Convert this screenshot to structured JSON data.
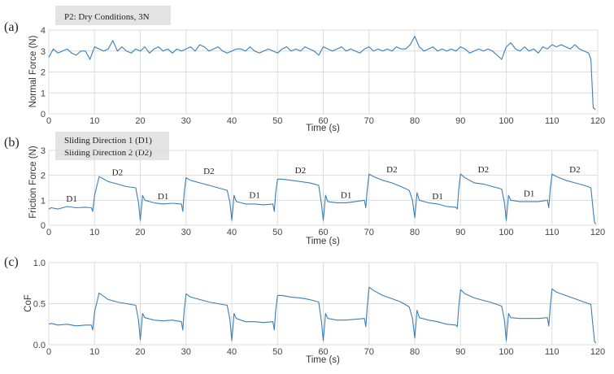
{
  "colors": {
    "line": "#3b7fb8",
    "grid": "#dcdcdc",
    "box": "#e3e3e3"
  },
  "chart_data": [
    {
      "type": "line",
      "panel": "(a)",
      "legend_box": [
        "P2: Dry Conditions, 3N"
      ],
      "xlabel": "Time (s)",
      "ylabel": "Normal Force (N)",
      "xlim": [
        0,
        120
      ],
      "ylim": [
        0,
        4
      ],
      "xticks": [
        "0",
        "10",
        "20",
        "30",
        "40",
        "50",
        "60",
        "70",
        "80",
        "90",
        "100",
        "110",
        "120"
      ],
      "yticks": [
        "0",
        "1",
        "2",
        "3",
        "4"
      ],
      "annotations": [],
      "series": [
        {
          "name": "Normal Force",
          "x": [
            0,
            1,
            2,
            3,
            4,
            5,
            6,
            7,
            8,
            9,
            10,
            11,
            12,
            13,
            14,
            15,
            16,
            17,
            18,
            19,
            20,
            21,
            22,
            23,
            24,
            25,
            26,
            27,
            28,
            29,
            30,
            31,
            32,
            33,
            34,
            35,
            36,
            37,
            38,
            39,
            40,
            41,
            42,
            43,
            44,
            45,
            46,
            47,
            48,
            49,
            50,
            51,
            52,
            53,
            54,
            55,
            56,
            57,
            58,
            59,
            60,
            61,
            62,
            63,
            64,
            65,
            66,
            67,
            68,
            69,
            70,
            71,
            72,
            73,
            74,
            75,
            76,
            77,
            78,
            79,
            80,
            81,
            82,
            83,
            84,
            85,
            86,
            87,
            88,
            89,
            90,
            91,
            92,
            93,
            94,
            95,
            96,
            97,
            98,
            99,
            100,
            101,
            102,
            103,
            104,
            105,
            106,
            107,
            108,
            109,
            110,
            111,
            112,
            113,
            114,
            115,
            116,
            117,
            118,
            118.5,
            119,
            119.5
          ],
          "y": [
            2.7,
            3.1,
            2.9,
            3.0,
            3.1,
            2.9,
            2.8,
            3.0,
            3.0,
            2.6,
            3.2,
            3.1,
            3.0,
            3.1,
            3.5,
            3.0,
            3.2,
            3.0,
            2.9,
            3.1,
            3.0,
            3.2,
            2.9,
            3.1,
            3.2,
            3.0,
            3.1,
            2.9,
            3.1,
            3.0,
            3.1,
            3.2,
            3.0,
            3.3,
            3.2,
            3.0,
            3.1,
            3.2,
            3.0,
            2.9,
            3.0,
            3.1,
            3.1,
            3.0,
            3.2,
            3.0,
            2.9,
            3.0,
            3.1,
            3.0,
            2.9,
            3.1,
            3.2,
            3.0,
            3.1,
            3.0,
            3.2,
            3.1,
            3.0,
            2.8,
            3.2,
            3.1,
            3.0,
            3.1,
            3.2,
            3.0,
            3.1,
            3.0,
            2.9,
            3.1,
            3.2,
            3.0,
            3.1,
            3.0,
            3.1,
            3.0,
            3.2,
            3.1,
            3.1,
            3.3,
            3.7,
            3.2,
            3.0,
            3.1,
            3.2,
            3.0,
            3.1,
            3.0,
            3.1,
            3.0,
            3.2,
            3.1,
            2.9,
            3.0,
            3.1,
            3.0,
            3.1,
            3.0,
            2.8,
            2.6,
            3.2,
            3.4,
            3.1,
            3.0,
            3.2,
            3.0,
            3.1,
            2.9,
            3.2,
            3.1,
            3.3,
            3.2,
            3.3,
            3.2,
            3.1,
            3.3,
            3.1,
            3.0,
            2.9,
            2.6,
            0.3,
            0.2
          ]
        }
      ]
    },
    {
      "type": "line",
      "panel": "(b)",
      "legend_box": [
        "Sliding Direction 1 (D1)",
        "Sliding Direction 2 (D2)"
      ],
      "xlabel": "Time (s)",
      "ylabel": "Friction Force (N)",
      "xlim": [
        0,
        120
      ],
      "ylim": [
        0,
        3
      ],
      "xticks": [
        "0",
        "10",
        "20",
        "30",
        "40",
        "50",
        "60",
        "70",
        "80",
        "90",
        "100",
        "110",
        "120"
      ],
      "yticks": [
        "0",
        "1",
        "2",
        "3"
      ],
      "annotations": [
        {
          "text": "D1",
          "x": 5,
          "y": 0.95
        },
        {
          "text": "D2",
          "x": 15,
          "y": 2.0
        },
        {
          "text": "D1",
          "x": 25,
          "y": 1.05
        },
        {
          "text": "D2",
          "x": 35,
          "y": 2.05
        },
        {
          "text": "D1",
          "x": 45,
          "y": 1.1
        },
        {
          "text": "D2",
          "x": 55,
          "y": 2.08
        },
        {
          "text": "D1",
          "x": 65,
          "y": 1.1
        },
        {
          "text": "D2",
          "x": 75,
          "y": 2.12
        },
        {
          "text": "D1",
          "x": 85,
          "y": 1.05
        },
        {
          "text": "D2",
          "x": 95,
          "y": 2.12
        },
        {
          "text": "D1",
          "x": 105,
          "y": 1.15
        },
        {
          "text": "D2",
          "x": 115,
          "y": 2.12
        }
      ],
      "series": [
        {
          "name": "Friction Force",
          "x": [
            0,
            0.5,
            2,
            4,
            6,
            8,
            9.3,
            9.6,
            10,
            11,
            13,
            15,
            17,
            19,
            19.6,
            20,
            20.5,
            21,
            23,
            25,
            27,
            29,
            29.3,
            29.6,
            30,
            31,
            33,
            35,
            37,
            39,
            39.6,
            40,
            40.5,
            41,
            43,
            45,
            47,
            49,
            49.3,
            49.6,
            50,
            51,
            53,
            55,
            57,
            59,
            59.6,
            60,
            60.5,
            61,
            63,
            65,
            67,
            69,
            69.3,
            69.6,
            70,
            71,
            73,
            75,
            77,
            78.8,
            79.5,
            80,
            80.5,
            81,
            83,
            85,
            87,
            89,
            89.3,
            89.6,
            90,
            91,
            93,
            95,
            97,
            99,
            99.6,
            100,
            100.5,
            101,
            103,
            105,
            107,
            109,
            109.3,
            109.6,
            110,
            111,
            113,
            115,
            117,
            118.5,
            119,
            119.3,
            119.6
          ],
          "y": [
            0.65,
            0.7,
            0.65,
            0.75,
            0.7,
            0.72,
            0.7,
            0.55,
            1.2,
            1.95,
            1.75,
            1.65,
            1.55,
            1.5,
            0.9,
            0.2,
            1.2,
            1.0,
            0.9,
            0.85,
            0.88,
            0.85,
            0.55,
            1.3,
            1.9,
            1.8,
            1.7,
            1.6,
            1.5,
            1.4,
            0.9,
            0.2,
            1.2,
            0.95,
            0.85,
            0.85,
            0.82,
            0.85,
            0.55,
            1.3,
            1.85,
            1.85,
            1.8,
            1.75,
            1.7,
            1.6,
            0.85,
            0.2,
            1.2,
            0.95,
            0.9,
            0.9,
            0.95,
            1.0,
            0.7,
            1.4,
            2.05,
            1.95,
            1.8,
            1.7,
            1.55,
            1.4,
            1.0,
            0.3,
            1.3,
            1.0,
            0.9,
            0.85,
            0.75,
            0.72,
            0.65,
            1.4,
            2.05,
            1.9,
            1.7,
            1.65,
            1.55,
            1.45,
            0.9,
            0.2,
            1.2,
            1.0,
            0.95,
            0.95,
            0.95,
            1.0,
            0.7,
            1.4,
            2.05,
            1.95,
            1.8,
            1.7,
            1.6,
            1.5,
            0.6,
            0.1,
            0.05
          ]
        }
      ]
    },
    {
      "type": "line",
      "panel": "(c)",
      "legend_box": [],
      "xlabel": "Time (s)",
      "ylabel": "CoF",
      "xlim": [
        0,
        120
      ],
      "ylim": [
        0,
        1
      ],
      "xticks": [
        "0",
        "10",
        "20",
        "30",
        "40",
        "50",
        "60",
        "70",
        "80",
        "90",
        "100",
        "110",
        "120"
      ],
      "yticks": [
        "0.0",
        "0.5",
        "1.0"
      ],
      "annotations": [],
      "series": [
        {
          "name": "CoF",
          "x": [
            0,
            0.5,
            2,
            4,
            6,
            8,
            9.3,
            9.6,
            10,
            11,
            13,
            15,
            17,
            19,
            19.6,
            20,
            20.5,
            21,
            23,
            25,
            27,
            29,
            29.3,
            29.6,
            30,
            31,
            33,
            35,
            37,
            39,
            39.6,
            40,
            40.5,
            41,
            43,
            45,
            47,
            49,
            49.3,
            49.6,
            50,
            51,
            53,
            55,
            57,
            59,
            59.6,
            60,
            60.5,
            61,
            63,
            65,
            67,
            69,
            69.3,
            69.6,
            70,
            71,
            73,
            75,
            77,
            78.8,
            79.5,
            80,
            80.5,
            81,
            83,
            85,
            87,
            89,
            89.3,
            89.6,
            90,
            91,
            93,
            95,
            97,
            99,
            99.6,
            100,
            100.5,
            101,
            103,
            105,
            107,
            109,
            109.3,
            109.6,
            110,
            111,
            113,
            115,
            117,
            118.5,
            119,
            119.3,
            119.6
          ],
          "y": [
            0.25,
            0.26,
            0.24,
            0.25,
            0.23,
            0.24,
            0.24,
            0.18,
            0.4,
            0.63,
            0.55,
            0.52,
            0.5,
            0.48,
            0.3,
            0.06,
            0.38,
            0.33,
            0.3,
            0.29,
            0.3,
            0.28,
            0.18,
            0.42,
            0.62,
            0.58,
            0.55,
            0.52,
            0.5,
            0.48,
            0.3,
            0.05,
            0.38,
            0.32,
            0.28,
            0.28,
            0.27,
            0.28,
            0.18,
            0.42,
            0.6,
            0.6,
            0.58,
            0.57,
            0.55,
            0.52,
            0.28,
            0.05,
            0.38,
            0.32,
            0.3,
            0.3,
            0.31,
            0.32,
            0.22,
            0.45,
            0.7,
            0.66,
            0.6,
            0.56,
            0.52,
            0.46,
            0.32,
            0.08,
            0.42,
            0.33,
            0.3,
            0.28,
            0.25,
            0.24,
            0.22,
            0.45,
            0.67,
            0.62,
            0.57,
            0.54,
            0.51,
            0.47,
            0.3,
            0.05,
            0.38,
            0.33,
            0.32,
            0.32,
            0.32,
            0.33,
            0.23,
            0.45,
            0.68,
            0.64,
            0.6,
            0.56,
            0.52,
            0.49,
            0.2,
            0.04,
            0.02
          ]
        }
      ]
    }
  ]
}
